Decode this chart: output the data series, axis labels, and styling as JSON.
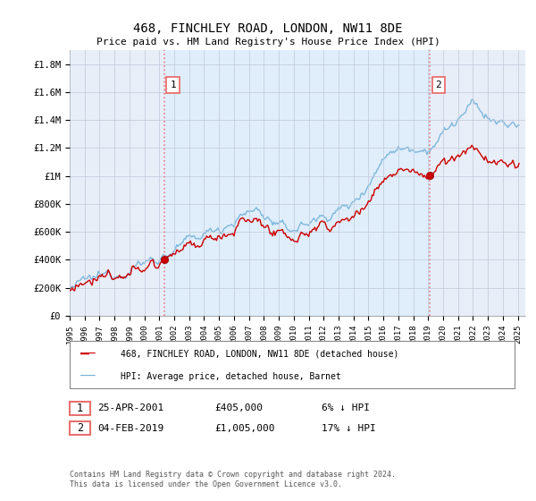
{
  "title": "468, FINCHLEY ROAD, LONDON, NW11 8DE",
  "subtitle": "Price paid vs. HM Land Registry's House Price Index (HPI)",
  "ylabel_ticks": [
    "£0",
    "£200K",
    "£400K",
    "£600K",
    "£800K",
    "£1M",
    "£1.2M",
    "£1.4M",
    "£1.6M",
    "£1.8M"
  ],
  "ytick_values": [
    0,
    200000,
    400000,
    600000,
    800000,
    1000000,
    1200000,
    1400000,
    1600000,
    1800000
  ],
  "ylim": [
    0,
    1900000
  ],
  "xlim_start": 1995.0,
  "xlim_end": 2025.5,
  "hpi_color": "#6baed6",
  "price_color": "#cc0000",
  "vline_color": "#e87070",
  "fill_color": "#ddeeff",
  "marker_color": "#cc0000",
  "legend_label_red": "468, FINCHLEY ROAD, LONDON, NW11 8DE (detached house)",
  "legend_label_blue": "HPI: Average price, detached house, Barnet",
  "sale1_label": "1",
  "sale1_date": "25-APR-2001",
  "sale1_price": "£405,000",
  "sale1_note": "6% ↓ HPI",
  "sale1_x": 2001.32,
  "sale1_y": 405000,
  "sale2_label": "2",
  "sale2_date": "04-FEB-2019",
  "sale2_price": "£1,005,000",
  "sale2_note": "17% ↓ HPI",
  "sale2_x": 2019.09,
  "sale2_y": 1005000,
  "footnote": "Contains HM Land Registry data © Crown copyright and database right 2024.\nThis data is licensed under the Open Government Licence v3.0.",
  "background_color": "#ffffff",
  "plot_bg_color": "#e8eef8"
}
